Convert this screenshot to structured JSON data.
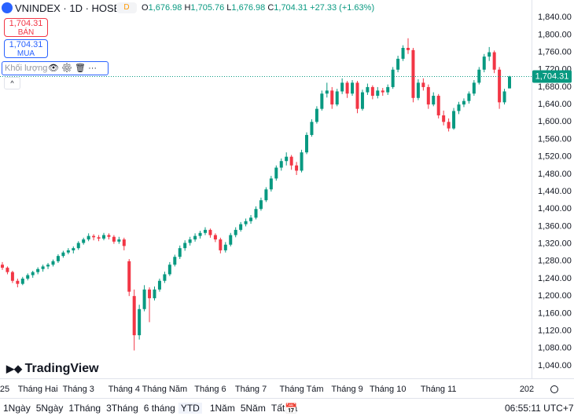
{
  "header": {
    "symbol": "VNINDEX · 1D · HOSE",
    "badge": "D",
    "o_key": "O",
    "o_val": "1,676.98",
    "h_key": "H",
    "h_val": "1,705.76",
    "l_key": "L",
    "l_val": "1,676.98",
    "c_key": "C",
    "c_val": "1,704.31",
    "change": "+27.33 (+1.63%)"
  },
  "order_buttons": {
    "sell_price": "1,704.31",
    "sell_label": "BÁN",
    "buy_price": "1,704.31",
    "buy_label": "MUA"
  },
  "volume_label": "Khối lượng",
  "logo": "TradingView",
  "toolbar": {
    "ranges": [
      "1Ngày",
      "5Ngày",
      "1Tháng",
      "3Tháng",
      "6 tháng",
      "YTD",
      "1Năm",
      "5Năm",
      "Tất cả"
    ],
    "clock": "06:55:11 UTC+7"
  },
  "chart_data": {
    "type": "candlestick",
    "up_color": "#089981",
    "down_color": "#f23645",
    "grid": false,
    "ylim": [
      1011,
      1880
    ],
    "yticks": [
      {
        "value": 1040,
        "label": "1,040.00"
      },
      {
        "value": 1080,
        "label": "1,080.00"
      },
      {
        "value": 1120,
        "label": "1,120.00"
      },
      {
        "value": 1160,
        "label": "1,160.00"
      },
      {
        "value": 1200,
        "label": "1,200.00"
      },
      {
        "value": 1240,
        "label": "1,240.00"
      },
      {
        "value": 1280,
        "label": "1,280.00"
      },
      {
        "value": 1320,
        "label": "1,320.00"
      },
      {
        "value": 1360,
        "label": "1,360.00"
      },
      {
        "value": 1400,
        "label": "1,400.00"
      },
      {
        "value": 1440,
        "label": "1,440.00"
      },
      {
        "value": 1480,
        "label": "1,480.00"
      },
      {
        "value": 1520,
        "label": "1,520.00"
      },
      {
        "value": 1560,
        "label": "1,560.00"
      },
      {
        "value": 1600,
        "label": "1,600.00"
      },
      {
        "value": 1640,
        "label": "1,640.00"
      },
      {
        "value": 1680,
        "label": "1,680.00"
      },
      {
        "value": 1720,
        "label": "1,720.00"
      },
      {
        "value": 1760,
        "label": "1,760.00"
      },
      {
        "value": 1800,
        "label": "1,800.00"
      },
      {
        "value": 1840,
        "label": "1,840.00"
      }
    ],
    "last_price_label": "1,704.31",
    "x_axis_end_label": "202",
    "categories": [
      "25",
      null,
      null,
      null,
      null,
      null,
      null,
      "Tháng Hai",
      null,
      null,
      null,
      null,
      null,
      null,
      null,
      "Tháng 3",
      null,
      null,
      null,
      null,
      null,
      null,
      null,
      null,
      "Tháng 4",
      null,
      null,
      null,
      null,
      null,
      null,
      null,
      "Tháng Năm",
      null,
      null,
      null,
      null,
      null,
      null,
      null,
      null,
      "Tháng 6",
      null,
      null,
      null,
      null,
      null,
      null,
      null,
      "Tháng 7",
      null,
      null,
      null,
      null,
      null,
      null,
      null,
      null,
      null,
      "Tháng Tám",
      null,
      null,
      null,
      null,
      null,
      null,
      null,
      null,
      "Tháng 9",
      null,
      null,
      null,
      null,
      null,
      null,
      null,
      "Tháng 10",
      null,
      null,
      null,
      null,
      null,
      null,
      null,
      null,
      null,
      "Tháng 11",
      null,
      null,
      null,
      null,
      null,
      null,
      null,
      null,
      null,
      null,
      null,
      null,
      null,
      null
    ],
    "candles": [
      [
        1272,
        1278,
        1260,
        1265
      ],
      [
        1265,
        1268,
        1250,
        1255
      ],
      [
        1255,
        1258,
        1230,
        1235
      ],
      [
        1235,
        1240,
        1220,
        1228
      ],
      [
        1228,
        1244,
        1225,
        1240
      ],
      [
        1240,
        1252,
        1236,
        1248
      ],
      [
        1248,
        1258,
        1242,
        1255
      ],
      [
        1255,
        1266,
        1250,
        1262
      ],
      [
        1262,
        1272,
        1256,
        1268
      ],
      [
        1268,
        1276,
        1262,
        1272
      ],
      [
        1272,
        1284,
        1268,
        1280
      ],
      [
        1280,
        1296,
        1276,
        1292
      ],
      [
        1292,
        1304,
        1288,
        1300
      ],
      [
        1300,
        1310,
        1296,
        1305
      ],
      [
        1305,
        1314,
        1298,
        1310
      ],
      [
        1310,
        1326,
        1306,
        1322
      ],
      [
        1322,
        1334,
        1318,
        1330
      ],
      [
        1330,
        1344,
        1326,
        1338
      ],
      [
        1338,
        1342,
        1328,
        1335
      ],
      [
        1335,
        1340,
        1326,
        1332
      ],
      [
        1332,
        1345,
        1328,
        1340
      ],
      [
        1340,
        1344,
        1330,
        1336
      ],
      [
        1336,
        1340,
        1320,
        1325
      ],
      [
        1325,
        1336,
        1320,
        1330
      ],
      [
        1330,
        1334,
        1305,
        1315
      ],
      [
        1280,
        1285,
        1200,
        1210
      ],
      [
        1200,
        1215,
        1075,
        1110
      ],
      [
        1110,
        1180,
        1100,
        1170
      ],
      [
        1170,
        1225,
        1165,
        1215
      ],
      [
        1215,
        1220,
        1140,
        1195
      ],
      [
        1195,
        1222,
        1190,
        1215
      ],
      [
        1215,
        1240,
        1210,
        1235
      ],
      [
        1235,
        1256,
        1230,
        1250
      ],
      [
        1250,
        1278,
        1246,
        1272
      ],
      [
        1272,
        1295,
        1268,
        1290
      ],
      [
        1290,
        1316,
        1285,
        1310
      ],
      [
        1310,
        1328,
        1304,
        1322
      ],
      [
        1322,
        1336,
        1316,
        1330
      ],
      [
        1330,
        1344,
        1325,
        1338
      ],
      [
        1338,
        1350,
        1332,
        1345
      ],
      [
        1345,
        1358,
        1340,
        1352
      ],
      [
        1352,
        1355,
        1334,
        1340
      ],
      [
        1340,
        1344,
        1324,
        1330
      ],
      [
        1330,
        1334,
        1298,
        1305
      ],
      [
        1305,
        1324,
        1300,
        1318
      ],
      [
        1318,
        1345,
        1314,
        1340
      ],
      [
        1340,
        1358,
        1335,
        1352
      ],
      [
        1352,
        1370,
        1348,
        1365
      ],
      [
        1365,
        1378,
        1360,
        1372
      ],
      [
        1372,
        1386,
        1366,
        1380
      ],
      [
        1380,
        1406,
        1376,
        1400
      ],
      [
        1400,
        1426,
        1396,
        1420
      ],
      [
        1420,
        1450,
        1416,
        1445
      ],
      [
        1445,
        1476,
        1440,
        1470
      ],
      [
        1470,
        1500,
        1465,
        1495
      ],
      [
        1495,
        1516,
        1488,
        1510
      ],
      [
        1510,
        1530,
        1500,
        1520
      ],
      [
        1520,
        1524,
        1490,
        1500
      ],
      [
        1500,
        1508,
        1478,
        1488
      ],
      [
        1488,
        1536,
        1484,
        1530
      ],
      [
        1530,
        1576,
        1526,
        1570
      ],
      [
        1570,
        1606,
        1566,
        1600
      ],
      [
        1600,
        1636,
        1596,
        1630
      ],
      [
        1630,
        1672,
        1626,
        1665
      ],
      [
        1665,
        1690,
        1656,
        1672
      ],
      [
        1672,
        1680,
        1630,
        1640
      ],
      [
        1640,
        1676,
        1636,
        1670
      ],
      [
        1670,
        1700,
        1664,
        1690
      ],
      [
        1690,
        1694,
        1655,
        1665
      ],
      [
        1665,
        1696,
        1660,
        1690
      ],
      [
        1690,
        1694,
        1620,
        1630
      ],
      [
        1630,
        1674,
        1626,
        1668
      ],
      [
        1668,
        1688,
        1662,
        1680
      ],
      [
        1680,
        1684,
        1652,
        1660
      ],
      [
        1660,
        1680,
        1654,
        1672
      ],
      [
        1672,
        1678,
        1660,
        1668
      ],
      [
        1668,
        1686,
        1662,
        1680
      ],
      [
        1680,
        1726,
        1676,
        1720
      ],
      [
        1720,
        1752,
        1714,
        1745
      ],
      [
        1745,
        1776,
        1740,
        1770
      ],
      [
        1770,
        1792,
        1756,
        1765
      ],
      [
        1765,
        1770,
        1645,
        1655
      ],
      [
        1655,
        1698,
        1650,
        1690
      ],
      [
        1690,
        1700,
        1672,
        1680
      ],
      [
        1680,
        1686,
        1630,
        1640
      ],
      [
        1640,
        1668,
        1636,
        1660
      ],
      [
        1660,
        1664,
        1608,
        1615
      ],
      [
        1615,
        1626,
        1592,
        1600
      ],
      [
        1600,
        1608,
        1578,
        1585
      ],
      [
        1585,
        1632,
        1582,
        1625
      ],
      [
        1625,
        1646,
        1618,
        1640
      ],
      [
        1640,
        1654,
        1634,
        1648
      ],
      [
        1648,
        1670,
        1642,
        1665
      ],
      [
        1665,
        1696,
        1660,
        1690
      ],
      [
        1690,
        1726,
        1686,
        1720
      ],
      [
        1720,
        1756,
        1714,
        1750
      ],
      [
        1750,
        1772,
        1740,
        1760
      ],
      [
        1760,
        1764,
        1712,
        1720
      ],
      [
        1720,
        1726,
        1630,
        1645
      ],
      [
        1645,
        1676,
        1640,
        1670
      ],
      [
        1676.98,
        1705.76,
        1676.98,
        1704.31
      ]
    ]
  }
}
